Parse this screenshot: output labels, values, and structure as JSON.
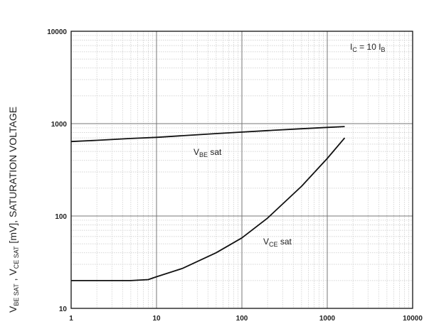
{
  "chart_data": {
    "type": "line",
    "x_scale": "log",
    "y_scale": "log",
    "xlim": [
      1,
      10000
    ],
    "ylim": [
      10,
      10000
    ],
    "x_ticks": [
      "1",
      "10",
      "100",
      "1000",
      "10000"
    ],
    "y_ticks": [
      "10",
      "100",
      "1000",
      "10000"
    ],
    "grid": true,
    "ylabel": {
      "part1_main": "V",
      "part1_sub": "BE SAT",
      "separator": " , ",
      "part2_main": "V",
      "part2_sub": "CE SAT",
      "rest": "  [mV], SATURATION VOLTAGE"
    },
    "annotation": {
      "main1": "I",
      "sub1": "C",
      "mid": " = 10 I",
      "sub2": "B"
    },
    "series": [
      {
        "name_main": "V",
        "name_sub": "BE",
        "name_rest": " sat",
        "x": [
          1,
          2,
          5,
          10,
          20,
          50,
          100,
          200,
          500,
          1000,
          1600
        ],
        "y": [
          640,
          660,
          690,
          710,
          740,
          780,
          810,
          840,
          880,
          910,
          930
        ]
      },
      {
        "name_main": "V",
        "name_sub": "CE",
        "name_rest": " sat",
        "x": [
          1,
          2,
          5,
          8,
          10,
          20,
          50,
          100,
          200,
          500,
          1000,
          1600
        ],
        "y": [
          20,
          20,
          20,
          20.5,
          22,
          27,
          40,
          58,
          95,
          210,
          420,
          700
        ]
      }
    ]
  }
}
